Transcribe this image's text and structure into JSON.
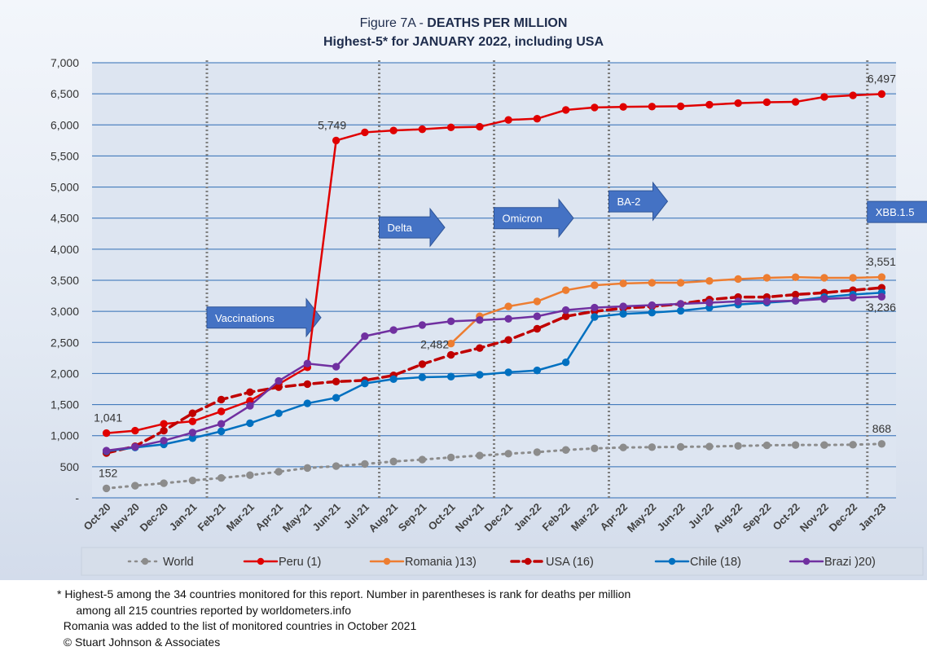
{
  "title": {
    "prefix": "Figure 7A - ",
    "main": "DEATHS PER MILLION",
    "subtitle": "Highest-5* for  JANUARY 2022, including USA"
  },
  "chart_data": {
    "type": "line",
    "categories": [
      "Oct-20",
      "Nov-20",
      "Dec-20",
      "Jan-21",
      "Feb-21",
      "Mar-21",
      "Apr-21",
      "May-21",
      "Jun-21",
      "Jul-21",
      "Aug-21",
      "Sep-21",
      "Oct-21",
      "Nov-21",
      "Dec-21",
      "Jan-22",
      "Feb-22",
      "Mar-22",
      "Apr-22",
      "May-22",
      "Jun-22",
      "Jul-22",
      "Aug-22",
      "Sep-22",
      "Oct-22",
      "Nov-22",
      "Dec-22",
      "Jan-23"
    ],
    "ylim": [
      0,
      7000
    ],
    "yticks": [
      "-",
      "500",
      "1,000",
      "1,500",
      "2,000",
      "2,500",
      "3,000",
      "3,500",
      "4,000",
      "4,500",
      "5,000",
      "5,500",
      "6,000",
      "6,500",
      "7,000"
    ],
    "grid": true,
    "legend_position": "bottom",
    "series": [
      {
        "name": "World",
        "color": "#8c8c8c",
        "dash": "dotted",
        "values": [
          152,
          195,
          235,
          280,
          320,
          365,
          420,
          480,
          510,
          545,
          585,
          615,
          650,
          680,
          710,
          735,
          770,
          795,
          810,
          815,
          820,
          825,
          835,
          845,
          850,
          850,
          855,
          868
        ]
      },
      {
        "name": "Peru (1)",
        "color": "#e00000",
        "dash": "solid",
        "values": [
          1041,
          1080,
          1190,
          1230,
          1390,
          1560,
          1830,
          2100,
          5749,
          5880,
          5910,
          5930,
          5960,
          5970,
          6080,
          6100,
          6240,
          6280,
          6290,
          6295,
          6300,
          6325,
          6350,
          6365,
          6370,
          6450,
          6475,
          6497
        ]
      },
      {
        "name": "Romania )13)",
        "color": "#ed7d31",
        "dash": "solid",
        "values": [
          null,
          null,
          null,
          null,
          null,
          null,
          null,
          null,
          null,
          null,
          null,
          null,
          2482,
          2920,
          3080,
          3160,
          3340,
          3420,
          3450,
          3460,
          3460,
          3490,
          3520,
          3540,
          3550,
          3540,
          3540,
          3551
        ]
      },
      {
        "name": "USA (16)",
        "color": "#c00000",
        "dash": "dashed",
        "values": [
          720,
          830,
          1080,
          1360,
          1580,
          1700,
          1780,
          1830,
          1870,
          1890,
          1970,
          2150,
          2300,
          2410,
          2540,
          2720,
          2920,
          3000,
          3050,
          3080,
          3120,
          3190,
          3230,
          3230,
          3270,
          3300,
          3340,
          3380
        ]
      },
      {
        "name": "Chile (18)",
        "color": "#0070c0",
        "dash": "solid",
        "values": [
          750,
          810,
          860,
          960,
          1070,
          1200,
          1360,
          1520,
          1610,
          1840,
          1910,
          1940,
          1950,
          1980,
          2020,
          2050,
          2180,
          2910,
          2960,
          2980,
          3010,
          3060,
          3110,
          3140,
          3170,
          3230,
          3270,
          3300
        ]
      },
      {
        "name": "Brazi )20)",
        "color": "#7030a0",
        "dash": "solid",
        "values": [
          760,
          820,
          920,
          1050,
          1190,
          1480,
          1880,
          2160,
          2110,
          2600,
          2700,
          2780,
          2840,
          2860,
          2880,
          2920,
          3020,
          3060,
          3080,
          3100,
          3120,
          3140,
          3160,
          3160,
          3170,
          3200,
          3220,
          3236
        ]
      }
    ],
    "data_labels": [
      {
        "text": "1,041",
        "series": "Peru (1)",
        "x": "Oct-20",
        "value": 1041
      },
      {
        "text": "152",
        "series": "World",
        "x": "Oct-20",
        "value": 152
      },
      {
        "text": "5,749",
        "series": "Peru (1)",
        "x": "Jun-21",
        "value": 5749
      },
      {
        "text": "2,482",
        "series": "Romania )13)",
        "x": "Oct-21",
        "value": 2482
      },
      {
        "text": "6,497",
        "series": "Peru (1)",
        "x": "Jan-23",
        "value": 6497
      },
      {
        "text": "3,551",
        "series": "Romania )13)",
        "x": "Jan-23",
        "value": 3551
      },
      {
        "text": "3,236",
        "series": "Brazi )20)",
        "x": "Jan-23",
        "value": 3236
      },
      {
        "text": "868",
        "series": "World",
        "x": "Jan-23",
        "value": 868
      }
    ],
    "annotations": [
      {
        "label": "Vaccinations",
        "at": "Jan-21",
        "level": 2900
      },
      {
        "label": "Delta",
        "at": "Jul-21",
        "level": 4350
      },
      {
        "label": "Omicron",
        "at": "Nov-21",
        "level": 4500
      },
      {
        "label": "BA-2",
        "at": "Mar-22",
        "level": 4770
      },
      {
        "label": "XBB.1.5",
        "at": "Dec-22",
        "level": 4600
      }
    ],
    "vlines": [
      "Jan-21",
      "Jul-21",
      "Nov-21",
      "Mar-22",
      "Dec-22"
    ]
  },
  "footnotes": [
    "* Highest-5 among the 34 countries monitored for this report. Number in parentheses is rank for deaths per million",
    "      among all 215 countries reported by worldometers.info",
    "  Romania was added to the list of monitored countries in October 2021",
    "  © Stuart Johnson & Associates"
  ]
}
